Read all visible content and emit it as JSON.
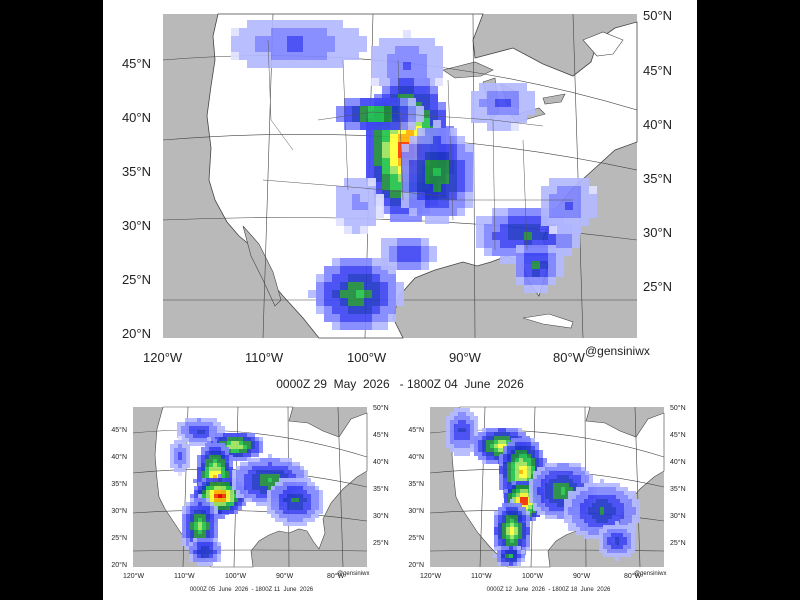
{
  "colors": {
    "land": "#ffffff",
    "water": "#b9b9b9",
    "border": "#333333",
    "scale": [
      "#dfe1ff",
      "#b3b8ff",
      "#7f86ff",
      "#3e45f2",
      "#1f35c9",
      "#1e8a3c",
      "#22c24a",
      "#9be35b",
      "#ffff33",
      "#ffb000",
      "#ff3a00",
      "#e60000"
    ]
  },
  "main": {
    "lat_labels_left": [
      "45°N",
      "40°N",
      "35°N",
      "30°N",
      "25°N",
      "20°N"
    ],
    "lat_labels_right": [
      "50°N",
      "45°N",
      "40°N",
      "35°N",
      "30°N",
      "25°N"
    ],
    "lon_labels": [
      "120°W",
      "110°W",
      "100°W",
      "90°W",
      "80°W"
    ],
    "credit": "@gensiniwx",
    "caption": "0000Z 29  May  2026   - 1800Z 04  June  2026"
  },
  "left": {
    "lat_labels_left": [
      "45°N",
      "40°N",
      "35°N",
      "30°N",
      "25°N",
      "20°N"
    ],
    "lat_labels_right": [
      "50°N",
      "45°N",
      "40°N",
      "35°N",
      "30°N",
      "25°N"
    ],
    "lon_labels": [
      "120°W",
      "110°W",
      "100°W",
      "90°W",
      "80°W"
    ],
    "credit": "@gensiniwx",
    "caption": "0000Z 05  June  2026  - 1800Z 11  June  2026"
  },
  "right": {
    "lat_labels_left": [
      "45°N",
      "40°N",
      "35°N",
      "30°N",
      "25°N",
      "20°N"
    ],
    "lat_labels_right": [
      "50°N",
      "45°N",
      "40°N",
      "35°N",
      "30°N",
      "25°N"
    ],
    "lon_labels": [
      "120°W",
      "110°W",
      "100°W",
      "90°W",
      "80°W"
    ],
    "credit": "@gensiniwx",
    "caption": "0000Z 12  June  2026  - 1800Z 18  June  2026"
  }
}
